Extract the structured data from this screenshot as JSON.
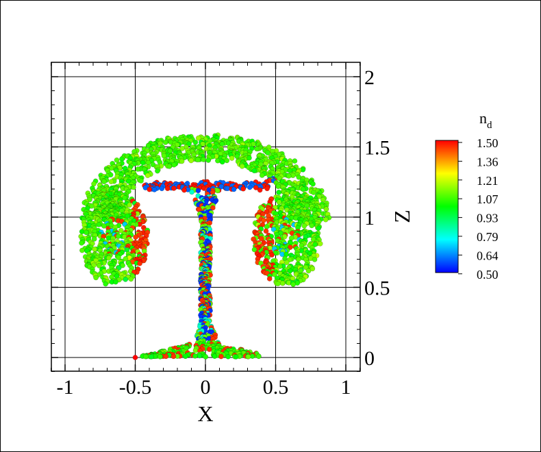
{
  "chart_data": {
    "type": "scatter",
    "title": "",
    "xlabel": "X",
    "ylabel": "Z",
    "xlim": [
      -1.1,
      1.1
    ],
    "ylim": [
      -0.1,
      2.1
    ],
    "xticks": [
      -1,
      -0.5,
      0,
      0.5,
      1
    ],
    "xtick_labels": [
      "-1",
      "-0.5",
      "0",
      "0.5",
      "1"
    ],
    "yticks": [
      0,
      0.5,
      1,
      1.5,
      2
    ],
    "ytick_labels": [
      "0",
      "0.5",
      "1",
      "1.5",
      "2"
    ],
    "grid": true,
    "color_variable": "n",
    "color_variable_subscript": "d",
    "colorbar_labels": [
      "1.50",
      "1.36",
      "1.21",
      "1.07",
      "0.93",
      "0.79",
      "0.64",
      "0.50"
    ],
    "color_range": [
      0.5,
      1.5
    ],
    "colormap": [
      "#0000ff",
      "#00ffff",
      "#00ff00",
      "#ffff00",
      "#ff0000"
    ],
    "description_regions": {
      "cap_arc": {
        "center": [
          0,
          0.98
        ],
        "radius_outer": [
          0.9,
          0.62
        ],
        "dominant_value": 1.07
      },
      "left_vortex": {
        "center": [
          -0.65,
          0.85
        ],
        "dominant_value": 1.07
      },
      "right_vortex": {
        "center": [
          0.58,
          0.85
        ],
        "dominant_value": 1.07
      },
      "stem": {
        "x_range": [
          -0.07,
          0.07
        ],
        "z_range": [
          0.1,
          1.2
        ],
        "values": "mixed 0.5-1.5"
      },
      "base": {
        "x_range": [
          -0.5,
          0.38
        ],
        "z_range": [
          0.0,
          0.12
        ],
        "dominant_value": 1.1
      }
    }
  }
}
